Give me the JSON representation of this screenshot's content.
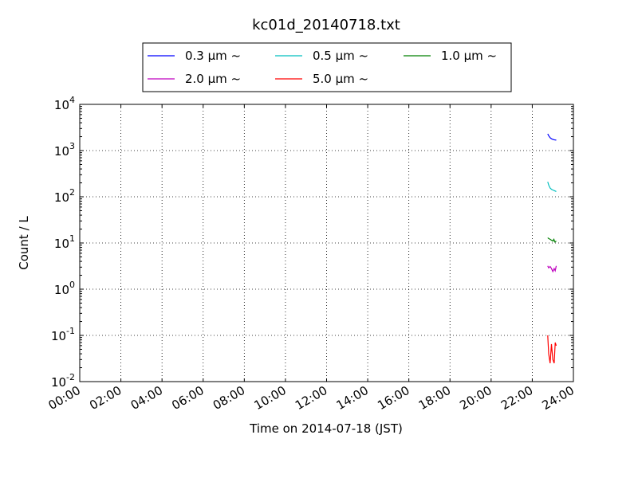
{
  "chart_data": {
    "type": "line",
    "title": "kc01d_20140718.txt",
    "xlabel": "Time on 2014-07-18 (JST)",
    "ylabel": "Count / L",
    "xlim": [
      "00:00",
      "24:00"
    ],
    "ylim": [
      0.01,
      10000
    ],
    "yscale": "log",
    "grid": true,
    "legend_placement": "top-center",
    "x_ticks": [
      "00:00",
      "02:00",
      "04:00",
      "06:00",
      "08:00",
      "10:00",
      "12:00",
      "14:00",
      "16:00",
      "18:00",
      "20:00",
      "22:00",
      "24:00"
    ],
    "y_ticks": [
      {
        "value": 0.01,
        "base": "10",
        "exp": "-2"
      },
      {
        "value": 0.1,
        "base": "10",
        "exp": "-1"
      },
      {
        "value": 1,
        "base": "10",
        "exp": "0"
      },
      {
        "value": 10,
        "base": "10",
        "exp": "1"
      },
      {
        "value": 100,
        "base": "10",
        "exp": "2"
      },
      {
        "value": 1000,
        "base": "10",
        "exp": "3"
      },
      {
        "value": 10000,
        "base": "10",
        "exp": "4"
      }
    ],
    "series": [
      {
        "name": "0.3 μm ~",
        "color": "#0000ff",
        "x": [
          "22:45",
          "22:48",
          "22:52",
          "22:56",
          "23:00",
          "23:05",
          "23:10"
        ],
        "y": [
          2300,
          2100,
          1900,
          1800,
          1750,
          1700,
          1680
        ]
      },
      {
        "name": "0.5 μm ~",
        "color": "#00bfbf",
        "x": [
          "22:45",
          "22:48",
          "22:52",
          "22:56",
          "23:00",
          "23:05",
          "23:10"
        ],
        "y": [
          210,
          180,
          155,
          145,
          140,
          135,
          130
        ]
      },
      {
        "name": "1.0 μm ~",
        "color": "#008000",
        "x": [
          "22:45",
          "22:48",
          "22:52",
          "22:56",
          "23:00",
          "23:03",
          "23:06",
          "23:10"
        ],
        "y": [
          13,
          12.5,
          12,
          11.5,
          11,
          12,
          10.5,
          11
        ]
      },
      {
        "name": "2.0 μm ~",
        "color": "#bf00bf",
        "x": [
          "22:45",
          "22:48",
          "22:52",
          "22:56",
          "23:00",
          "23:04",
          "23:07",
          "23:10"
        ],
        "y": [
          3.2,
          2.9,
          3.1,
          2.8,
          2.4,
          2.8,
          2.5,
          3.2
        ]
      },
      {
        "name": "5.0 μm ~",
        "color": "#ff0000",
        "x": [
          "22:45",
          "22:48",
          "22:52",
          "22:56",
          "23:00",
          "23:04",
          "23:07",
          "23:10"
        ],
        "y": [
          0.1,
          0.04,
          0.025,
          0.065,
          0.03,
          0.025,
          0.07,
          0.06
        ]
      }
    ]
  }
}
